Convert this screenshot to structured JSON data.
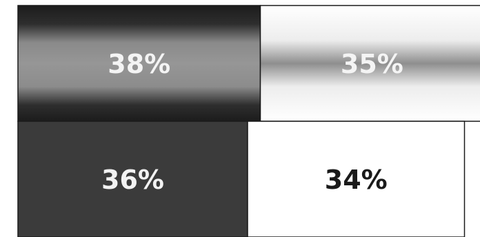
{
  "chart_data": {
    "type": "bar",
    "orientation": "horizontal",
    "stacked": true,
    "unit": "%",
    "rows": [
      {
        "segments": [
          {
            "value": 38,
            "label": "38%",
            "fill": "#6a6a6a",
            "label_color": "#f4f4f4"
          },
          {
            "value": 35,
            "label": "35%",
            "fill": "#e2e2e2",
            "label_color": "#f4f4f4"
          }
        ]
      },
      {
        "segments": [
          {
            "value": 36,
            "label": "36%",
            "fill": "#3b3b3b",
            "label_color": "#f2f2f2"
          },
          {
            "value": 34,
            "label": "34%",
            "fill": "#ffffff",
            "label_color": "#1a1a1a"
          }
        ]
      }
    ]
  }
}
